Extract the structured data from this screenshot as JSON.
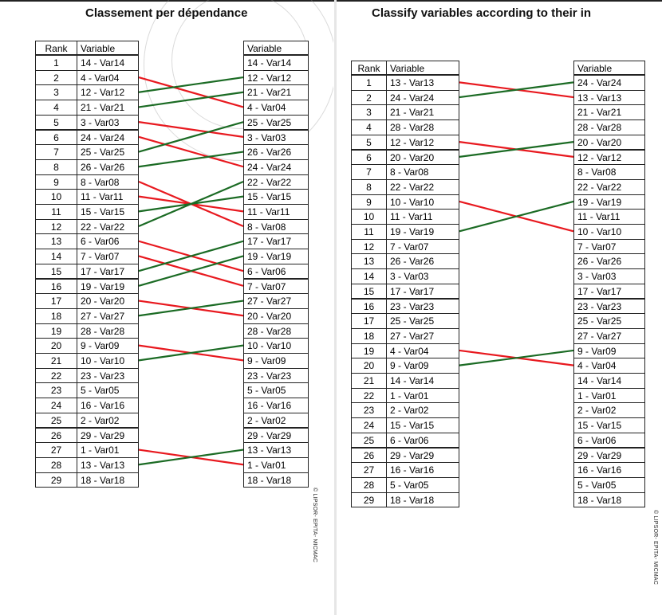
{
  "left": {
    "title": "Classement per dépendance",
    "headers": {
      "rank": "Rank",
      "variable": "Variable",
      "right_variable": "Variable"
    },
    "rows": [
      {
        "rank": "1",
        "left": "14 - Var14",
        "right": "14 - Var14"
      },
      {
        "rank": "2",
        "left": "4 - Var04",
        "right": "12 - Var12"
      },
      {
        "rank": "3",
        "left": "12 - Var12",
        "right": "21 - Var21"
      },
      {
        "rank": "4",
        "left": "21 - Var21",
        "right": "4 - Var04"
      },
      {
        "rank": "5",
        "left": "3 - Var03",
        "right": "25 - Var25"
      },
      {
        "rank": "6",
        "left": "24 - Var24",
        "right": "3 - Var03"
      },
      {
        "rank": "7",
        "left": "25 - Var25",
        "right": "26 - Var26"
      },
      {
        "rank": "8",
        "left": "26 - Var26",
        "right": "24 - Var24"
      },
      {
        "rank": "9",
        "left": "8 - Var08",
        "right": "22 - Var22"
      },
      {
        "rank": "10",
        "left": "11 - Var11",
        "right": "15 - Var15"
      },
      {
        "rank": "11",
        "left": "15 - Var15",
        "right": "11 - Var11"
      },
      {
        "rank": "12",
        "left": "22 - Var22",
        "right": "8 - Var08"
      },
      {
        "rank": "13",
        "left": "6 - Var06",
        "right": "17 - Var17"
      },
      {
        "rank": "14",
        "left": "7 - Var07",
        "right": "19 - Var19"
      },
      {
        "rank": "15",
        "left": "17 - Var17",
        "right": "6 - Var06"
      },
      {
        "rank": "16",
        "left": "19 - Var19",
        "right": "7 - Var07"
      },
      {
        "rank": "17",
        "left": "20 - Var20",
        "right": "27 - Var27"
      },
      {
        "rank": "18",
        "left": "27 - Var27",
        "right": "20 - Var20"
      },
      {
        "rank": "19",
        "left": "28 - Var28",
        "right": "28 - Var28"
      },
      {
        "rank": "20",
        "left": "9 - Var09",
        "right": "10 - Var10"
      },
      {
        "rank": "21",
        "left": "10 - Var10",
        "right": "9 - Var09"
      },
      {
        "rank": "22",
        "left": "23 - Var23",
        "right": "23 - Var23"
      },
      {
        "rank": "23",
        "left": "5 - Var05",
        "right": "5 - Var05"
      },
      {
        "rank": "24",
        "left": "16 - Var16",
        "right": "16 - Var16"
      },
      {
        "rank": "25",
        "left": "2 - Var02",
        "right": "2 - Var02"
      },
      {
        "rank": "26",
        "left": "29 - Var29",
        "right": "29 - Var29"
      },
      {
        "rank": "27",
        "left": "1 - Var01",
        "right": "13 - Var13"
      },
      {
        "rank": "28",
        "left": "13 - Var13",
        "right": "1 - Var01"
      },
      {
        "rank": "29",
        "left": "18 - Var18",
        "right": "18 - Var18"
      }
    ],
    "copyright": "© LIPSOR- EPITA- MICMAC"
  },
  "right": {
    "title": "Classify variables according to their in",
    "headers": {
      "rank": "Rank",
      "variable": "Variable",
      "right_variable": "Variable"
    },
    "rows": [
      {
        "rank": "1",
        "left": "13 - Var13",
        "right": "24 - Var24"
      },
      {
        "rank": "2",
        "left": "24 - Var24",
        "right": "13 - Var13"
      },
      {
        "rank": "3",
        "left": "21 - Var21",
        "right": "21 - Var21"
      },
      {
        "rank": "4",
        "left": "28 - Var28",
        "right": "28 - Var28"
      },
      {
        "rank": "5",
        "left": "12 - Var12",
        "right": "20 - Var20"
      },
      {
        "rank": "6",
        "left": "20 - Var20",
        "right": "12 - Var12"
      },
      {
        "rank": "7",
        "left": "8 - Var08",
        "right": "8 - Var08"
      },
      {
        "rank": "8",
        "left": "22 - Var22",
        "right": "22 - Var22"
      },
      {
        "rank": "9",
        "left": "10 - Var10",
        "right": "19 - Var19"
      },
      {
        "rank": "10",
        "left": "11 - Var11",
        "right": "11 - Var11"
      },
      {
        "rank": "11",
        "left": "19 - Var19",
        "right": "10 - Var10"
      },
      {
        "rank": "12",
        "left": "7 - Var07",
        "right": "7 - Var07"
      },
      {
        "rank": "13",
        "left": "26 - Var26",
        "right": "26 - Var26"
      },
      {
        "rank": "14",
        "left": "3 - Var03",
        "right": "3 - Var03"
      },
      {
        "rank": "15",
        "left": "17 - Var17",
        "right": "17 - Var17"
      },
      {
        "rank": "16",
        "left": "23 - Var23",
        "right": "23 - Var23"
      },
      {
        "rank": "17",
        "left": "25 - Var25",
        "right": "25 - Var25"
      },
      {
        "rank": "18",
        "left": "27 - Var27",
        "right": "27 - Var27"
      },
      {
        "rank": "19",
        "left": "4 - Var04",
        "right": "9 - Var09"
      },
      {
        "rank": "20",
        "left": "9 - Var09",
        "right": "4 - Var04"
      },
      {
        "rank": "21",
        "left": "14 - Var14",
        "right": "14 - Var14"
      },
      {
        "rank": "22",
        "left": "1 - Var01",
        "right": "1 - Var01"
      },
      {
        "rank": "23",
        "left": "2 - Var02",
        "right": "2 - Var02"
      },
      {
        "rank": "24",
        "left": "15 - Var15",
        "right": "15 - Var15"
      },
      {
        "rank": "25",
        "left": "6 - Var06",
        "right": "6 - Var06"
      },
      {
        "rank": "26",
        "left": "29 - Var29",
        "right": "29 - Var29"
      },
      {
        "rank": "27",
        "left": "16 - Var16",
        "right": "16 - Var16"
      },
      {
        "rank": "28",
        "left": "5 - Var05",
        "right": "5 - Var05"
      },
      {
        "rank": "29",
        "left": "18 - Var18",
        "right": "18 - Var18"
      }
    ],
    "copyright": "© LIPSOR- EPITA- MICMAC"
  },
  "colors": {
    "rank_down": "#e8191f",
    "rank_up": "#1b6b24",
    "border": "#222222"
  }
}
